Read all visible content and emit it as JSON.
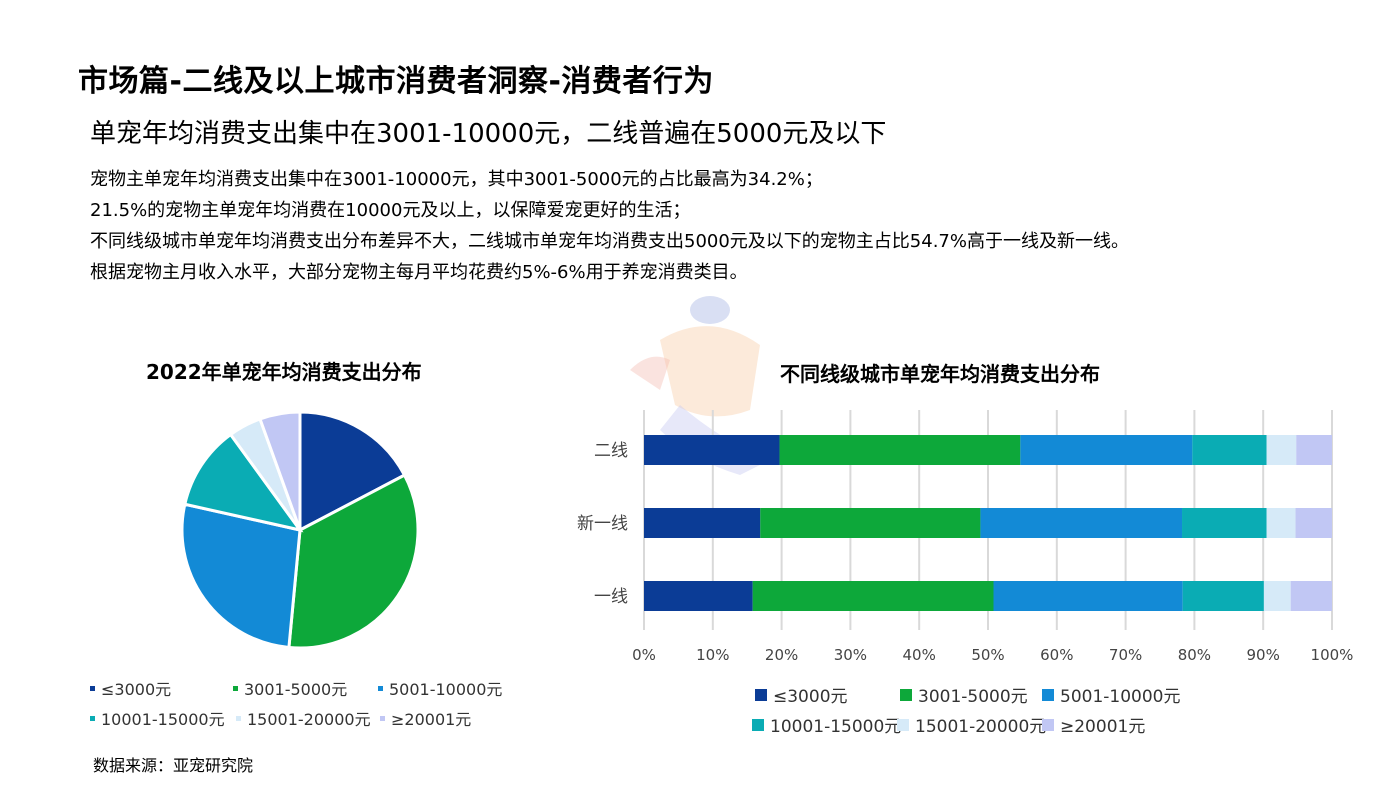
{
  "title": "市场篇-二线及以上城市消费者洞察-消费者行为",
  "subtitle": "单宠年均消费支出集中在3001-10000元，二线普遍在5000元及以下",
  "body": [
    "宠物主单宠年均消费支出集中在3001-10000元，其中3001-5000元的占比最高为34.2%；",
    "21.5%的宠物主单宠年均消费在10000元及以上，以保障爱宠更好的生活；",
    "不同线级城市单宠年均消费支出分布差异不大，二线城市单宠年均消费支出5000元及以下的宠物主占比54.7%高于一线及新一线。",
    "根据宠物主月收入水平，大部分宠物主每月平均花费约5%-6%用于养宠消费类目。"
  ],
  "source": "数据来源：亚宠研究院",
  "colors": [
    "#0B3C96",
    "#0DA83A",
    "#138AD6",
    "#0AACB4",
    "#D6EAF8",
    "#C1C7F4"
  ],
  "chart_data": [
    {
      "type": "pie",
      "title": "2022年单宠年均消费支出分布",
      "categories": [
        "≤3000元",
        "3001-5000元",
        "5001-10000元",
        "10001-15000元",
        "15001-20000元",
        "≥20001元"
      ],
      "values": [
        17.3,
        34.2,
        27.0,
        11.5,
        4.5,
        5.5
      ]
    },
    {
      "type": "bar",
      "orientation": "horizontal-stacked",
      "title": "不同线级城市单宠年均消费支出分布",
      "categories": [
        "二线",
        "新一线",
        "一线"
      ],
      "xlim": [
        0,
        100
      ],
      "x_ticks": [
        "0%",
        "10%",
        "20%",
        "30%",
        "40%",
        "50%",
        "60%",
        "70%",
        "80%",
        "90%",
        "100%"
      ],
      "series": [
        {
          "name": "≤3000元",
          "values": [
            19.7,
            16.9,
            15.8
          ]
        },
        {
          "name": "3001-5000元",
          "values": [
            35.0,
            32.0,
            35.0
          ]
        },
        {
          "name": "5001-10000元",
          "values": [
            25.0,
            29.3,
            27.5
          ]
        },
        {
          "name": "10001-15000元",
          "values": [
            10.8,
            12.3,
            11.8
          ]
        },
        {
          "name": "15001-20000元",
          "values": [
            4.3,
            4.2,
            3.9
          ]
        },
        {
          "name": "≥20001元",
          "values": [
            5.2,
            5.3,
            6.0
          ]
        }
      ]
    }
  ]
}
